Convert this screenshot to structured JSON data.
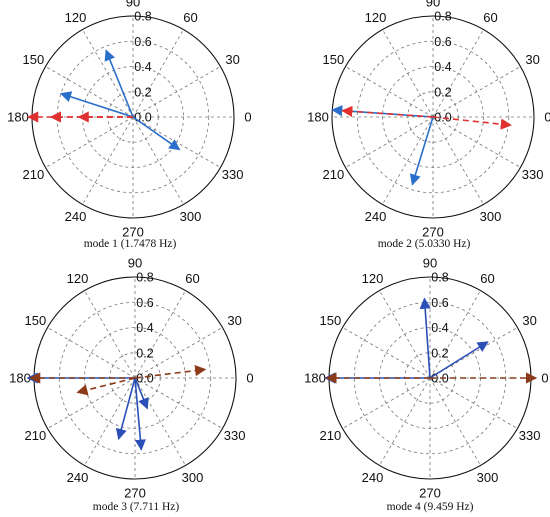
{
  "chart_data": [
    {
      "type": "polar",
      "title": "mode 1 (1.7478 Hz)",
      "angle_ticks": [
        "0",
        "30",
        "60",
        "90",
        "120",
        "150",
        "180",
        "210",
        "240",
        "270",
        "300",
        "330"
      ],
      "radial_ticks": [
        "0.0",
        "0.2",
        "0.4",
        "0.6",
        "0.8"
      ],
      "rmax": 0.8,
      "series": [
        {
          "style": "solid",
          "color": "#2a6fc9",
          "vectors": [
            {
              "angle": 112,
              "r": 0.57
            },
            {
              "angle": 162,
              "r": 0.6
            },
            {
              "angle": 325,
              "r": 0.45
            }
          ]
        },
        {
          "style": "dashed",
          "color": "#e03030",
          "vectors": [
            {
              "angle": 180,
              "r": 0.83
            },
            {
              "angle": 180,
              "r": 0.65
            },
            {
              "angle": 180,
              "r": 0.43
            }
          ]
        }
      ]
    },
    {
      "type": "polar",
      "title": "mode 2 (5.0330 Hz)",
      "angle_ticks": [
        "0",
        "30",
        "60",
        "90",
        "120",
        "150",
        "180",
        "210",
        "240",
        "270",
        "300",
        "330"
      ],
      "radial_ticks": [
        "0.0",
        "0.2",
        "0.4",
        "0.6",
        "0.8"
      ],
      "rmax": 0.8,
      "series": [
        {
          "style": "solid",
          "color": "#2a6fc9",
          "vectors": [
            {
              "angle": 176,
              "r": 0.8
            },
            {
              "angle": 253,
              "r": 0.56
            }
          ]
        },
        {
          "style": "dashed",
          "color": "#e03030",
          "vectors": [
            {
              "angle": 176,
              "r": 0.72
            },
            {
              "angle": 354,
              "r": 0.62
            }
          ]
        }
      ]
    },
    {
      "type": "polar",
      "title": "mode 3 (7.711 Hz)",
      "angle_ticks": [
        "0",
        "30",
        "60",
        "90",
        "120",
        "150",
        "180",
        "210",
        "240",
        "270",
        "300",
        "330"
      ],
      "radial_ticks": [
        "0.0",
        "0.2",
        "0.4",
        "0.6",
        "0.8"
      ],
      "rmax": 0.8,
      "series": [
        {
          "style": "solid",
          "color": "#2a50b8",
          "vectors": [
            {
              "angle": 180,
              "r": 0.85
            },
            {
              "angle": 255,
              "r": 0.5
            },
            {
              "angle": 275,
              "r": 0.57
            },
            {
              "angle": 292,
              "r": 0.26
            }
          ]
        },
        {
          "style": "dashed",
          "color": "#8b3a1a",
          "vectors": [
            {
              "angle": 7,
              "r": 0.56
            },
            {
              "angle": 194,
              "r": 0.47
            },
            {
              "angle": 180,
              "r": 0.83
            }
          ]
        }
      ]
    },
    {
      "type": "polar",
      "title": "mode 4 (9.459 Hz)",
      "angle_ticks": [
        "0",
        "30",
        "60",
        "90",
        "120",
        "150",
        "180",
        "210",
        "240",
        "270",
        "300",
        "330"
      ],
      "radial_ticks": [
        "0.0",
        "0.2",
        "0.4",
        "0.6",
        "0.8"
      ],
      "rmax": 0.8,
      "series": [
        {
          "style": "solid",
          "color": "#2a50b8",
          "vectors": [
            {
              "angle": 94,
              "r": 0.63
            },
            {
              "angle": 32,
              "r": 0.54
            },
            {
              "angle": 180,
              "r": 0.83
            }
          ]
        },
        {
          "style": "dashed",
          "color": "#8b3a1a",
          "vectors": [
            {
              "angle": 0,
              "r": 0.84
            },
            {
              "angle": 180,
              "r": 0.82
            }
          ]
        }
      ]
    }
  ]
}
